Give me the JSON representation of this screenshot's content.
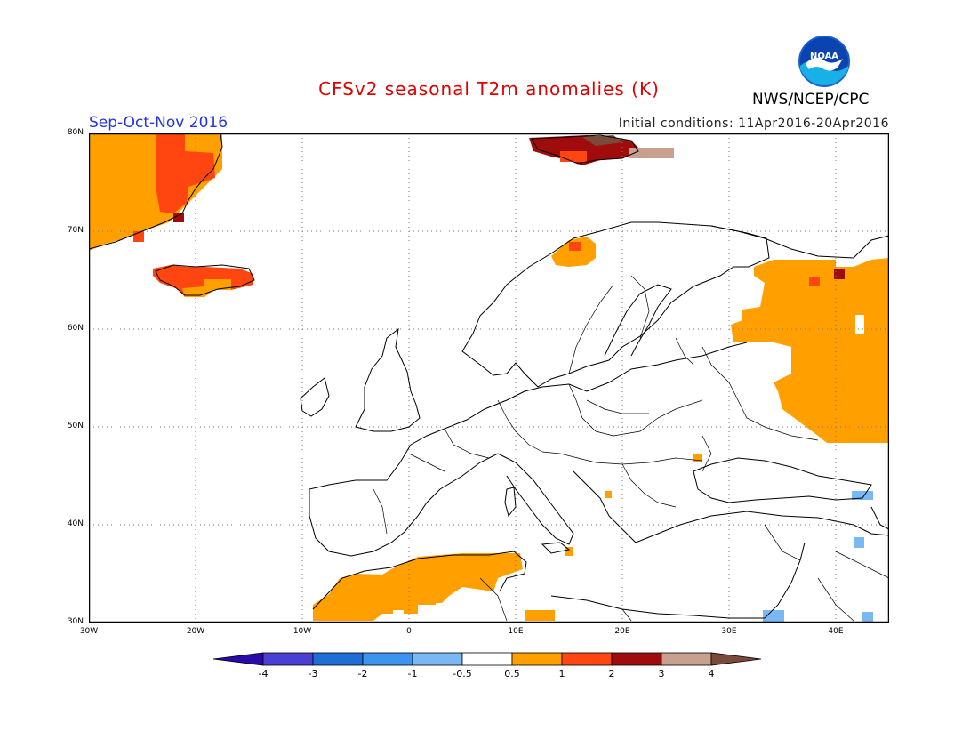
{
  "header": {
    "title": "CFSv2 seasonal T2m anomalies (K)",
    "season": "Sep-Oct-Nov 2016",
    "initial_conditions": "Initial conditions: 11Apr2016-20Apr2016",
    "agency": "NWS/NCEP/CPC",
    "logo_text": "NOAA"
  },
  "map": {
    "lon_range": [
      -30,
      45
    ],
    "lat_range": [
      30,
      80
    ],
    "lat_labels": [
      "80N",
      "70N",
      "60N",
      "50N",
      "40N",
      "30N"
    ],
    "lon_labels": [
      "30W",
      "20W",
      "10W",
      "0",
      "10E",
      "20E",
      "30E",
      "40E"
    ]
  },
  "colorbar": {
    "labels": [
      "-4",
      "-3",
      "-2",
      "-1",
      "-0.5",
      "0.5",
      "1",
      "2",
      "3",
      "4"
    ],
    "colors": [
      "#2a0aa8",
      "#4a3fd4",
      "#1f6ed8",
      "#3d93f0",
      "#7ab8f4",
      "#ffffff",
      "#ffa000",
      "#ff4510",
      "#a00c0c",
      "#c8a090",
      "#7a4a3a"
    ]
  },
  "colors": {
    "orange": "#ffa000",
    "red_orange": "#ff4510",
    "dark_red": "#a00c0c",
    "tan": "#c8a090",
    "light_blue": "#7ab8f4"
  }
}
